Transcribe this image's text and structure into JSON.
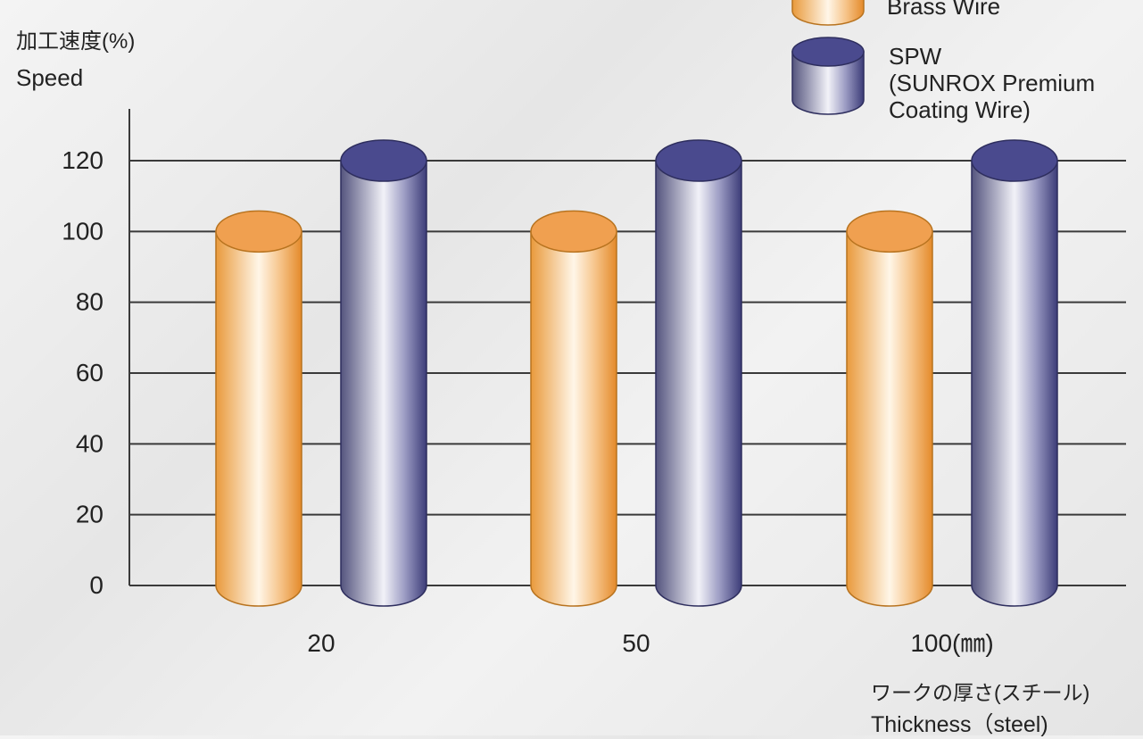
{
  "chart_data": {
    "type": "bar",
    "style": "3d-cylinder",
    "categories": [
      "20",
      "50",
      "100(㎜)"
    ],
    "series": [
      {
        "name": "Brass Wire",
        "values": [
          100,
          100,
          100
        ],
        "color": "#f0a050"
      },
      {
        "name": "SPW (SUNROX Premium Coating Wire)",
        "values": [
          120,
          120,
          120
        ],
        "color": "#4a4a8e"
      }
    ],
    "yticks": [
      "0",
      "20",
      "40",
      "60",
      "80",
      "100",
      "120"
    ],
    "ylim": [
      0,
      120
    ],
    "grid": true,
    "legend_position": "top-right",
    "ylabel_jp": "加工速度(%)",
    "ylabel": "Speed",
    "xlabel_jp": "ワークの厚さ(スチール)",
    "xlabel": "Thickness（steel)"
  },
  "legend": {
    "brass_label": "Brass Wire",
    "spw_label_1": "SPW",
    "spw_label_2": "(SUNROX Premium",
    "spw_label_3": "Coating Wire)"
  }
}
